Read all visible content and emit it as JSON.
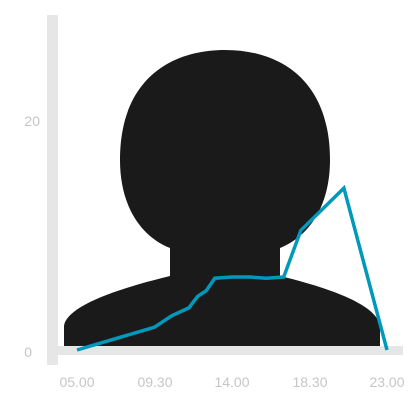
{
  "chart_data": {
    "type": "line",
    "x_tick_labels": [
      "05.00",
      "09.30",
      "14.00",
      "18.30",
      "23.00"
    ],
    "y_tick_labels": [
      "0",
      "20"
    ],
    "xlim": [
      5,
      23
    ],
    "ylim": [
      0,
      20
    ],
    "grid": false,
    "series": [
      {
        "x": [
          "05.00",
          "09.30",
          "10.30",
          "11.30",
          "12.00",
          "12.30",
          "13.00",
          "14.00",
          "15.00",
          "16.00",
          "17.00",
          "18.00",
          "20.30",
          "23.00"
        ],
        "y": [
          0,
          2,
          3,
          3.7,
          4.7,
          5.2,
          6.3,
          6.4,
          6.4,
          6.3,
          6.4,
          10.5,
          14.2,
          0
        ],
        "color": "#0099bb"
      }
    ],
    "background_figure": {
      "icon": "person-silhouette-icon",
      "color": "#1a1a1a"
    },
    "axis_color": "#e6e6e6",
    "tick_label_color": "#c6c6c6"
  }
}
